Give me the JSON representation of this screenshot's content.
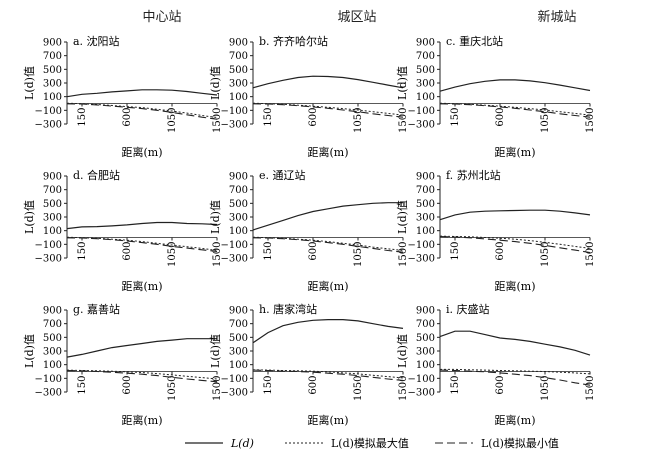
{
  "column_headers": [
    "中心站",
    "城区站",
    "新城站"
  ],
  "legend": {
    "ld": "L(d)",
    "max": "L(d)模拟最大值",
    "min": "L(d)模拟最小值"
  },
  "chart_data": [
    {
      "type": "line",
      "title": "a. 沈阳站",
      "ylabel": "L(d)值",
      "xlabel": "距离(m)",
      "ylim": [
        -300,
        900
      ],
      "yticks": [
        -300,
        -100,
        100,
        300,
        500,
        700,
        900
      ],
      "xticks": [
        150,
        600,
        1050,
        1500
      ],
      "x": [
        0,
        150,
        300,
        450,
        600,
        750,
        900,
        1050,
        1200,
        1350,
        1500
      ],
      "series": [
        {
          "name": "L(d)",
          "values": [
            100,
            135,
            150,
            170,
            185,
            200,
            200,
            195,
            175,
            150,
            125
          ]
        },
        {
          "name": "L(d)模拟最大值",
          "values": [
            5,
            -3,
            -15,
            -30,
            -45,
            -60,
            -85,
            -110,
            -140,
            -175,
            -205
          ]
        },
        {
          "name": "L(d)模拟最小值",
          "values": [
            -5,
            -8,
            -20,
            -38,
            -55,
            -75,
            -100,
            -130,
            -165,
            -200,
            -230
          ]
        }
      ]
    },
    {
      "type": "line",
      "title": "b. 齐齐哈尔站",
      "ylabel": "L(d)值",
      "xlabel": "距离(m)",
      "ylim": [
        -300,
        900
      ],
      "yticks": [
        -300,
        -100,
        100,
        300,
        500,
        700,
        900
      ],
      "xticks": [
        150,
        600,
        1050,
        1500
      ],
      "x": [
        0,
        150,
        300,
        450,
        600,
        750,
        900,
        1050,
        1200,
        1350,
        1500
      ],
      "series": [
        {
          "name": "L(d)",
          "values": [
            230,
            290,
            340,
            380,
            400,
            395,
            380,
            350,
            310,
            270,
            230
          ]
        },
        {
          "name": "L(d)模拟最大值",
          "values": [
            5,
            -3,
            -12,
            -25,
            -40,
            -55,
            -75,
            -95,
            -120,
            -145,
            -170
          ]
        },
        {
          "name": "L(d)模拟最小值",
          "values": [
            -5,
            -8,
            -18,
            -32,
            -50,
            -70,
            -95,
            -120,
            -150,
            -175,
            -200
          ]
        }
      ]
    },
    {
      "type": "line",
      "title": "c. 重庆北站",
      "ylabel": "L(d)值",
      "xlabel": "距离(m)",
      "ylim": [
        -300,
        900
      ],
      "yticks": [
        -300,
        -100,
        100,
        300,
        500,
        700,
        900
      ],
      "xticks": [
        150,
        600,
        1050,
        1500
      ],
      "x": [
        0,
        150,
        300,
        450,
        600,
        750,
        900,
        1050,
        1200,
        1350,
        1500
      ],
      "series": [
        {
          "name": "L(d)",
          "values": [
            180,
            240,
            290,
            325,
            345,
            345,
            330,
            305,
            270,
            230,
            190
          ]
        },
        {
          "name": "L(d)模拟最大值",
          "values": [
            5,
            -3,
            -12,
            -25,
            -40,
            -55,
            -75,
            -95,
            -120,
            -145,
            -170
          ]
        },
        {
          "name": "L(d)模拟最小值",
          "values": [
            -5,
            -8,
            -18,
            -32,
            -50,
            -70,
            -95,
            -120,
            -150,
            -175,
            -200
          ]
        }
      ]
    },
    {
      "type": "line",
      "title": "d. 合肥站",
      "ylabel": "L(d)值",
      "xlabel": "距离(m)",
      "ylim": [
        -300,
        900
      ],
      "yticks": [
        -300,
        -100,
        100,
        300,
        500,
        700,
        900
      ],
      "xticks": [
        150,
        600,
        1050,
        1500
      ],
      "x": [
        0,
        150,
        300,
        450,
        600,
        750,
        900,
        1050,
        1200,
        1350,
        1500
      ],
      "series": [
        {
          "name": "L(d)",
          "values": [
            130,
            155,
            160,
            170,
            185,
            205,
            220,
            220,
            205,
            200,
            190
          ]
        },
        {
          "name": "L(d)模拟最大值",
          "values": [
            5,
            -3,
            -12,
            -25,
            -40,
            -60,
            -85,
            -110,
            -135,
            -160,
            -190
          ]
        },
        {
          "name": "L(d)模拟最小值",
          "values": [
            -5,
            -8,
            -18,
            -32,
            -50,
            -75,
            -100,
            -130,
            -155,
            -180,
            -205
          ]
        }
      ]
    },
    {
      "type": "line",
      "title": "e. 通辽站",
      "ylabel": "L(d)值",
      "xlabel": "距离(m)",
      "ylim": [
        -300,
        900
      ],
      "yticks": [
        -300,
        -100,
        100,
        300,
        500,
        700,
        900
      ],
      "xticks": [
        150,
        600,
        1050,
        1500
      ],
      "x": [
        0,
        150,
        300,
        450,
        600,
        750,
        900,
        1050,
        1200,
        1350,
        1500
      ],
      "series": [
        {
          "name": "L(d)",
          "values": [
            110,
            180,
            250,
            320,
            380,
            420,
            460,
            480,
            500,
            510,
            510
          ]
        },
        {
          "name": "L(d)模拟最大值",
          "values": [
            5,
            -3,
            -12,
            -25,
            -40,
            -60,
            -85,
            -110,
            -140,
            -165,
            -190
          ]
        },
        {
          "name": "L(d)模拟最小值",
          "values": [
            -5,
            -8,
            -18,
            -32,
            -50,
            -75,
            -100,
            -130,
            -160,
            -190,
            -215
          ]
        }
      ]
    },
    {
      "type": "line",
      "title": "f. 苏州北站",
      "ylabel": "L(d)值",
      "xlabel": "距离(m)",
      "ylim": [
        -300,
        900
      ],
      "yticks": [
        -300,
        -100,
        100,
        300,
        500,
        700,
        900
      ],
      "xticks": [
        150,
        600,
        1050,
        1500
      ],
      "x": [
        0,
        150,
        300,
        450,
        600,
        750,
        900,
        1050,
        1200,
        1350,
        1500
      ],
      "series": [
        {
          "name": "L(d)",
          "values": [
            260,
            330,
            370,
            385,
            390,
            395,
            400,
            400,
            385,
            360,
            330
          ]
        },
        {
          "name": "L(d)模拟最大值",
          "values": [
            20,
            15,
            10,
            0,
            -10,
            -25,
            -45,
            -70,
            -100,
            -130,
            -160
          ]
        },
        {
          "name": "L(d)模拟最小值",
          "values": [
            15,
            8,
            -5,
            -20,
            -40,
            -60,
            -85,
            -115,
            -150,
            -185,
            -220
          ]
        }
      ]
    },
    {
      "type": "line",
      "title": "g. 嘉善站",
      "ylabel": "L(d)值",
      "xlabel": "距离(m)",
      "ylim": [
        -300,
        900
      ],
      "yticks": [
        -300,
        -100,
        100,
        300,
        500,
        700,
        900
      ],
      "xticks": [
        150,
        600,
        1050,
        1500
      ],
      "x": [
        0,
        150,
        300,
        450,
        600,
        750,
        900,
        1050,
        1200,
        1350,
        1500
      ],
      "series": [
        {
          "name": "L(d)",
          "values": [
            210,
            250,
            300,
            350,
            380,
            410,
            440,
            460,
            480,
            480,
            480
          ]
        },
        {
          "name": "L(d)模拟最大值",
          "values": [
            20,
            15,
            10,
            5,
            -5,
            -15,
            -30,
            -50,
            -70,
            -90,
            -110
          ]
        },
        {
          "name": "L(d)模拟最小值",
          "values": [
            15,
            10,
            0,
            -10,
            -25,
            -40,
            -60,
            -85,
            -110,
            -130,
            -150
          ]
        }
      ]
    },
    {
      "type": "line",
      "title": "h. 唐家湾站",
      "ylabel": "L(d)值",
      "xlabel": "距离(m)",
      "ylim": [
        -300,
        900
      ],
      "yticks": [
        -300,
        -100,
        100,
        300,
        500,
        700,
        900
      ],
      "xticks": [
        150,
        600,
        1050,
        1500
      ],
      "x": [
        0,
        150,
        300,
        450,
        600,
        750,
        900,
        1050,
        1200,
        1350,
        1500
      ],
      "series": [
        {
          "name": "L(d)",
          "values": [
            420,
            570,
            670,
            720,
            750,
            760,
            760,
            740,
            700,
            660,
            630
          ]
        },
        {
          "name": "L(d)模拟最大值",
          "values": [
            25,
            20,
            15,
            10,
            5,
            -5,
            -20,
            -35,
            -55,
            -75,
            -95
          ]
        },
        {
          "name": "L(d)模拟最小值",
          "values": [
            20,
            15,
            5,
            0,
            -10,
            -25,
            -40,
            -60,
            -85,
            -110,
            -130
          ]
        }
      ]
    },
    {
      "type": "line",
      "title": "i. 庆盛站",
      "ylabel": "L(d)值",
      "xlabel": "距离(m)",
      "ylim": [
        -300,
        900
      ],
      "yticks": [
        -300,
        -100,
        100,
        300,
        500,
        700,
        900
      ],
      "xticks": [
        150,
        600,
        1050,
        1500
      ],
      "x": [
        0,
        150,
        300,
        450,
        600,
        750,
        900,
        1050,
        1200,
        1350,
        1500
      ],
      "series": [
        {
          "name": "L(d)",
          "values": [
            510,
            590,
            590,
            540,
            490,
            470,
            440,
            400,
            360,
            310,
            240
          ]
        },
        {
          "name": "L(d)模拟最大值",
          "values": [
            30,
            30,
            25,
            20,
            15,
            10,
            5,
            0,
            -10,
            -20,
            -35
          ]
        },
        {
          "name": "L(d)模拟最小值",
          "values": [
            20,
            15,
            5,
            -5,
            -20,
            -40,
            -60,
            -90,
            -125,
            -165,
            -200
          ]
        }
      ]
    }
  ]
}
